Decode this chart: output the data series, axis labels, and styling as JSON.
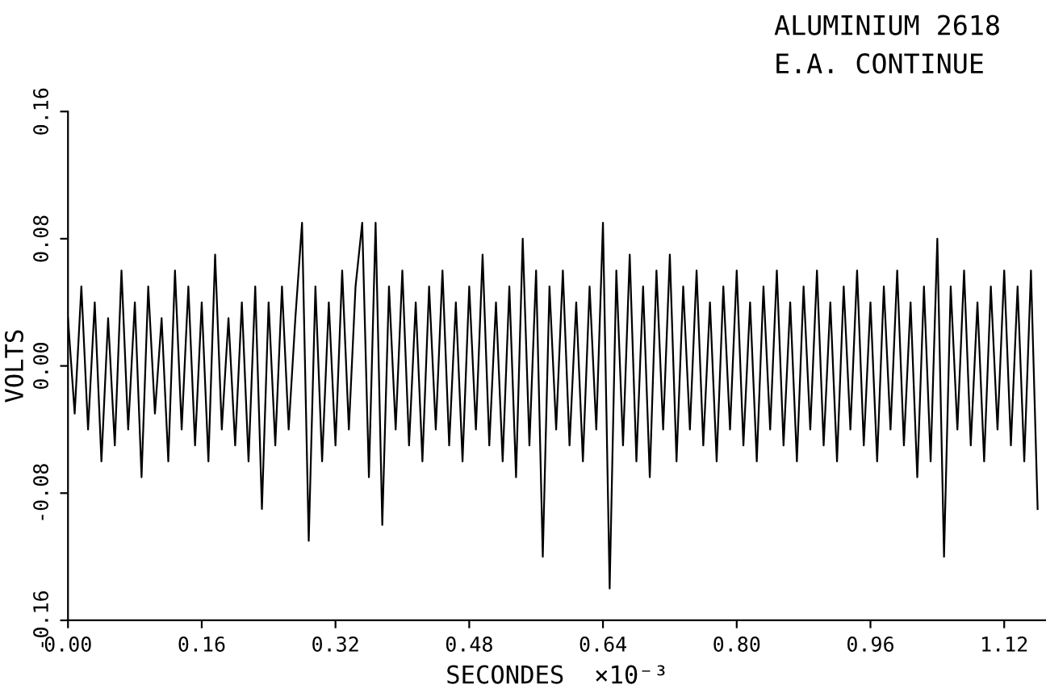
{
  "chart_data": {
    "type": "line",
    "title": "ALUMINIUM 2618",
    "subtitle": "E.A. CONTINUE",
    "xlabel": "SECONDES  ×10⁻³",
    "ylabel": "VOLTS",
    "x": [
      0,
      0.008,
      0.016,
      0.024,
      0.032,
      0.04,
      0.048,
      0.056,
      0.064,
      0.072,
      0.08,
      0.088,
      0.096,
      0.104,
      0.112,
      0.12,
      0.128,
      0.136,
      0.144,
      0.152,
      0.16,
      0.168,
      0.176,
      0.184,
      0.192,
      0.2,
      0.208,
      0.216,
      0.224,
      0.232,
      0.24,
      0.248,
      0.256,
      0.264,
      0.272,
      0.28,
      0.288,
      0.296,
      0.304,
      0.312,
      0.32,
      0.328,
      0.336,
      0.344,
      0.352,
      0.36,
      0.368,
      0.376,
      0.384,
      0.392,
      0.4,
      0.408,
      0.416,
      0.424,
      0.432,
      0.44,
      0.448,
      0.456,
      0.464,
      0.472,
      0.48,
      0.488,
      0.496,
      0.504,
      0.512,
      0.52,
      0.528,
      0.536,
      0.544,
      0.552,
      0.56,
      0.568,
      0.576,
      0.584,
      0.592,
      0.6,
      0.608,
      0.616,
      0.624,
      0.632,
      0.64,
      0.648,
      0.656,
      0.664,
      0.672,
      0.68,
      0.688,
      0.696,
      0.704,
      0.712,
      0.72,
      0.728,
      0.736,
      0.744,
      0.752,
      0.76,
      0.768,
      0.776,
      0.784,
      0.792,
      0.8,
      0.808,
      0.816,
      0.824,
      0.832,
      0.84,
      0.848,
      0.856,
      0.864,
      0.872,
      0.88,
      0.888,
      0.896,
      0.904,
      0.912,
      0.92,
      0.928,
      0.936,
      0.944,
      0.952,
      0.96,
      0.968,
      0.976,
      0.984,
      0.992,
      1.0,
      1.008,
      1.016,
      1.024,
      1.032,
      1.04,
      1.048,
      1.056,
      1.064,
      1.072,
      1.08,
      1.088,
      1.096,
      1.104,
      1.112,
      1.12,
      1.128,
      1.136,
      1.144,
      1.152,
      1.16
    ],
    "series": [
      {
        "color": "#000000",
        "values": [
          0.03,
          -0.03,
          0.05,
          -0.04,
          0.04,
          -0.06,
          0.03,
          -0.05,
          0.06,
          -0.04,
          0.04,
          -0.07,
          0.05,
          -0.03,
          0.03,
          -0.06,
          0.06,
          -0.04,
          0.05,
          -0.05,
          0.04,
          -0.06,
          0.07,
          -0.04,
          0.03,
          -0.05,
          0.04,
          -0.06,
          0.05,
          -0.09,
          0.04,
          -0.05,
          0.05,
          -0.04,
          0.03,
          0.09,
          -0.11,
          0.05,
          -0.06,
          0.04,
          -0.05,
          0.06,
          -0.04,
          0.05,
          0.09,
          -0.07,
          0.09,
          -0.1,
          0.05,
          -0.04,
          0.06,
          -0.05,
          0.04,
          -0.06,
          0.05,
          -0.04,
          0.06,
          -0.05,
          0.04,
          -0.06,
          0.05,
          -0.04,
          0.07,
          -0.05,
          0.04,
          -0.06,
          0.05,
          -0.07,
          0.08,
          -0.05,
          0.06,
          -0.12,
          0.05,
          -0.04,
          0.06,
          -0.05,
          0.04,
          -0.06,
          0.05,
          -0.04,
          0.09,
          -0.14,
          0.06,
          -0.05,
          0.07,
          -0.06,
          0.05,
          -0.07,
          0.06,
          -0.04,
          0.07,
          -0.06,
          0.05,
          -0.04,
          0.06,
          -0.05,
          0.04,
          -0.06,
          0.05,
          -0.04,
          0.06,
          -0.05,
          0.04,
          -0.06,
          0.05,
          -0.04,
          0.06,
          -0.05,
          0.04,
          -0.06,
          0.05,
          -0.04,
          0.06,
          -0.05,
          0.04,
          -0.06,
          0.05,
          -0.04,
          0.06,
          -0.05,
          0.04,
          -0.06,
          0.05,
          -0.04,
          0.06,
          -0.05,
          0.04,
          -0.07,
          0.05,
          -0.06,
          0.08,
          -0.12,
          0.05,
          -0.04,
          0.06,
          -0.05,
          0.04,
          -0.06,
          0.05,
          -0.04,
          0.06,
          -0.05,
          0.05,
          -0.06,
          0.06,
          -0.09
        ]
      }
    ],
    "xlim": [
      0,
      1.17
    ],
    "ylim": [
      -0.16,
      0.16
    ],
    "xticks": [
      {
        "value": 0,
        "label": "0.00"
      },
      {
        "value": 0.16,
        "label": "0.16"
      },
      {
        "value": 0.32,
        "label": "0.32"
      },
      {
        "value": 0.48,
        "label": "0.48"
      },
      {
        "value": 0.64,
        "label": "0.64"
      },
      {
        "value": 0.8,
        "label": "0.80"
      },
      {
        "value": 0.96,
        "label": "0.96"
      },
      {
        "value": 1.12,
        "label": "1.12"
      }
    ],
    "yticks": [
      {
        "value": -0.16,
        "label": "-0.16"
      },
      {
        "value": -0.08,
        "label": "-0.08"
      },
      {
        "value": 0,
        "label": "0.00"
      },
      {
        "value": 0.08,
        "label": "0.08"
      },
      {
        "value": 0.16,
        "label": "0.16"
      }
    ],
    "line_style": "solid",
    "marker": "none",
    "grid": false,
    "legend": false
  }
}
